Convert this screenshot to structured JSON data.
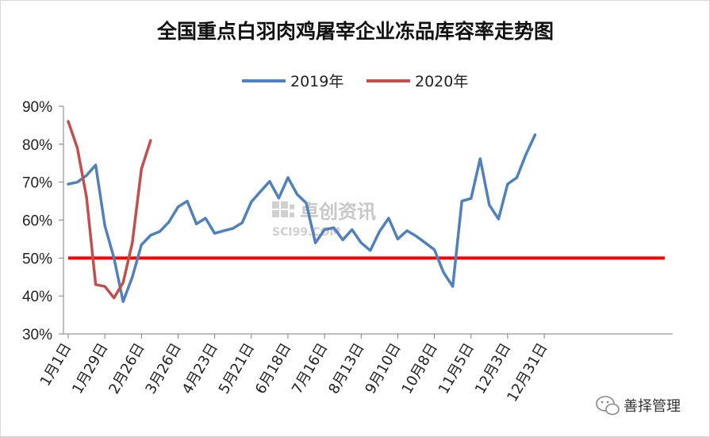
{
  "chart_data": {
    "type": "line",
    "title": "全国重点白羽肉鸡屠宰企业冻品库容率走势图",
    "ylim": [
      0.3,
      0.9
    ],
    "y_ticks": [
      "30%",
      "40%",
      "50%",
      "60%",
      "70%",
      "80%",
      "90%"
    ],
    "y_tick_values": [
      0.3,
      0.4,
      0.5,
      0.6,
      0.7,
      0.8,
      0.9
    ],
    "x_tick_labels": [
      "1月1日",
      "1月29日",
      "2月26日",
      "3月26日",
      "4月23日",
      "5月21日",
      "6月18日",
      "7月16日",
      "8月13日",
      "9月10日",
      "10月8日",
      "11月5日",
      "12月3日",
      "12月31日"
    ],
    "x_tick_interval_weeks": 4,
    "legend_position": "top",
    "grid": false,
    "reference_line": {
      "value": 0.5,
      "color": "#ff0000"
    },
    "series": [
      {
        "name": "2019年",
        "color": "#4f81bd",
        "values": [
          0.695,
          0.7,
          0.718,
          0.745,
          0.585,
          0.5,
          0.385,
          0.45,
          0.535,
          0.56,
          0.57,
          0.595,
          0.635,
          0.65,
          0.59,
          0.605,
          0.565,
          0.572,
          0.578,
          0.593,
          0.648,
          0.675,
          0.702,
          0.658,
          0.712,
          0.668,
          0.645,
          0.54,
          0.575,
          0.58,
          0.548,
          0.575,
          0.54,
          0.52,
          0.57,
          0.605,
          0.55,
          0.572,
          0.558,
          0.54,
          0.522,
          0.462,
          0.425,
          0.65,
          0.657,
          0.762,
          0.64,
          0.603,
          0.695,
          0.712,
          0.773,
          0.825
        ]
      },
      {
        "name": "2020年",
        "color": "#c0504d",
        "values": [
          0.86,
          0.79,
          0.66,
          0.43,
          0.425,
          0.395,
          0.435,
          0.54,
          0.735,
          0.81
        ]
      }
    ]
  },
  "watermark": {
    "text": "卓创资讯",
    "sub": "SCI99.COM"
  },
  "badge": {
    "text": "善择管理",
    "icon": "wechat-icon"
  }
}
